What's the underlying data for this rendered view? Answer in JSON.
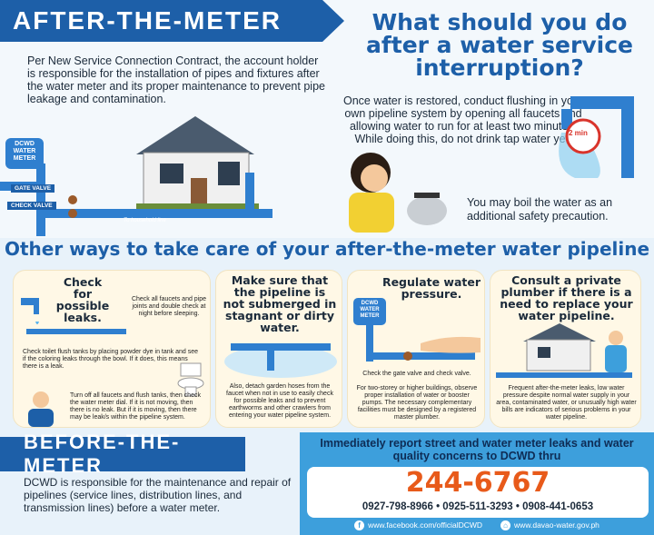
{
  "after_meter": {
    "banner": "AFTER-THE-METER",
    "text": "Per New Service Connection Contract, the account holder is responsible for the installation of pipes and fixtures after the water meter and its proper maintenance to prevent pipe leakage and contamination.",
    "meter_label": "DCWD WATER METER",
    "gate_valve": "GATE VALVE",
    "check_valve": "CHECK VALVE",
    "household": "To household line"
  },
  "interruption": {
    "title": "What should you do after a water service interruption?",
    "restore_text": "Once water is restored, conduct flushing in your own pipeline system by opening all faucets and allowing water to run for at least two minutes. While doing this, do not drink tap water yet.",
    "timer": "2 min",
    "boil_text": "You may boil the water as an additional safety precaution."
  },
  "other_ways": {
    "title": "Other ways to take care of your after-the-meter water pipeline",
    "cards": [
      {
        "title": "Check for possible leaks.",
        "text1": "Check all faucets and pipe joints and double check at night before sleeping.",
        "text2": "Check toilet flush tanks by placing powder dye in tank and see if the coloring leaks through the bowl. If it does, this means there is a leak.",
        "text3": "Turn off all faucets and flush tanks, then check the water meter dial. If it is not moving, then there is no leak. But if it is moving, then there may be leak/s within the pipeline system."
      },
      {
        "title": "Make sure that the pipeline is not submerged in stagnant or dirty water.",
        "text1": "Also, detach garden hoses from the faucet when not in use to easily check for possible leaks and to prevent earthworms and other crawlers from entering your water pipeline system."
      },
      {
        "title": "Regulate water pressure.",
        "meter_label": "DCWD WATER METER",
        "text1": "Check the gate valve and check valve.",
        "text2": "For two-storey or higher buildings, observe proper installation of water or booster pumps. The necessary complementary facilities must be designed by a registered master plumber."
      },
      {
        "title": "Consult a private plumber if there is a need to replace your water pipeline.",
        "text1": "Frequent after-the-meter leaks, low water pressure despite normal water supply in your area, contaminated water, or unusually high water bills are indicators of serious problems in your water pipeline."
      }
    ]
  },
  "before_meter": {
    "banner": "BEFORE-THE-METER",
    "text": "DCWD is responsible for the maintenance and repair of pipelines (service lines, distribution lines, and transmission lines) before a water meter."
  },
  "contact": {
    "title": "Immediately report street and water meter leaks and water quality concerns to DCWD thru",
    "hotline": "244-6767",
    "phones": "0927-798-8966  •  0925-511-3293  •  0908-441-0653",
    "facebook": "www.facebook.com/officialDCWD",
    "website": "www.davao-water.gov.ph"
  },
  "colors": {
    "primary_blue": "#1d5fa8",
    "light_blue": "#3d9fdc",
    "hotline_orange": "#e85a1a",
    "card_bg": "#fff8e6"
  }
}
